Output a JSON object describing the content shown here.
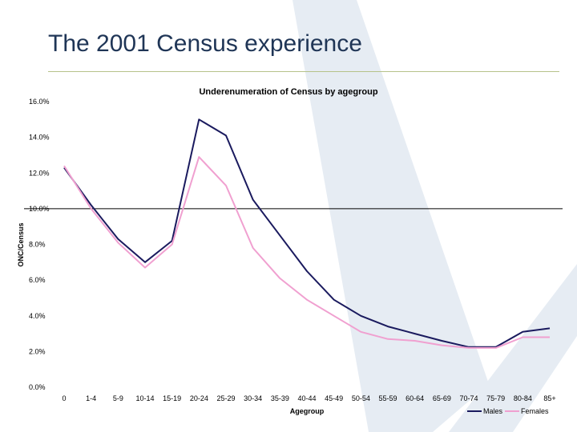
{
  "slide": {
    "title": "The 2001 Census experience"
  },
  "colors": {
    "title": "#1f3556",
    "rule": "#b6c28a",
    "watermark": "#e6ecf3",
    "males": "#1a1a5e",
    "females": "#f0a0d0",
    "reference_line": "#000000"
  },
  "chart_data": {
    "type": "line",
    "title": "Underenumeration of Census by agegroup",
    "xlabel": "Agegroup",
    "ylabel": "ONC/Census",
    "categories": [
      "0",
      "1-4",
      "5-9",
      "10-14",
      "15-19",
      "20-24",
      "25-29",
      "30-34",
      "35-39",
      "40-44",
      "45-49",
      "50-54",
      "55-59",
      "60-64",
      "65-69",
      "70-74",
      "75-79",
      "80-84",
      "85+"
    ],
    "series": [
      {
        "name": "Males",
        "color": "#1a1a5e",
        "values": [
          12.3,
          10.2,
          8.3,
          7.0,
          8.2,
          15.0,
          14.1,
          10.5,
          8.5,
          6.5,
          4.9,
          4.0,
          3.4,
          3.0,
          2.6,
          2.25,
          2.25,
          3.1,
          3.3
        ]
      },
      {
        "name": "Females",
        "color": "#f0a0d0",
        "values": [
          12.4,
          10.0,
          8.1,
          6.7,
          8.0,
          12.9,
          11.3,
          7.8,
          6.1,
          4.9,
          4.0,
          3.1,
          2.7,
          2.6,
          2.35,
          2.2,
          2.2,
          2.8,
          2.8
        ]
      }
    ],
    "reference_line": 10.0,
    "yticks": [
      "0.0%",
      "2.0%",
      "4.0%",
      "6.0%",
      "8.0%",
      "10.0%",
      "12.0%",
      "14.0%",
      "16.0%"
    ],
    "ylim": [
      0,
      16
    ],
    "grid": false,
    "legend": "bottom-right"
  }
}
